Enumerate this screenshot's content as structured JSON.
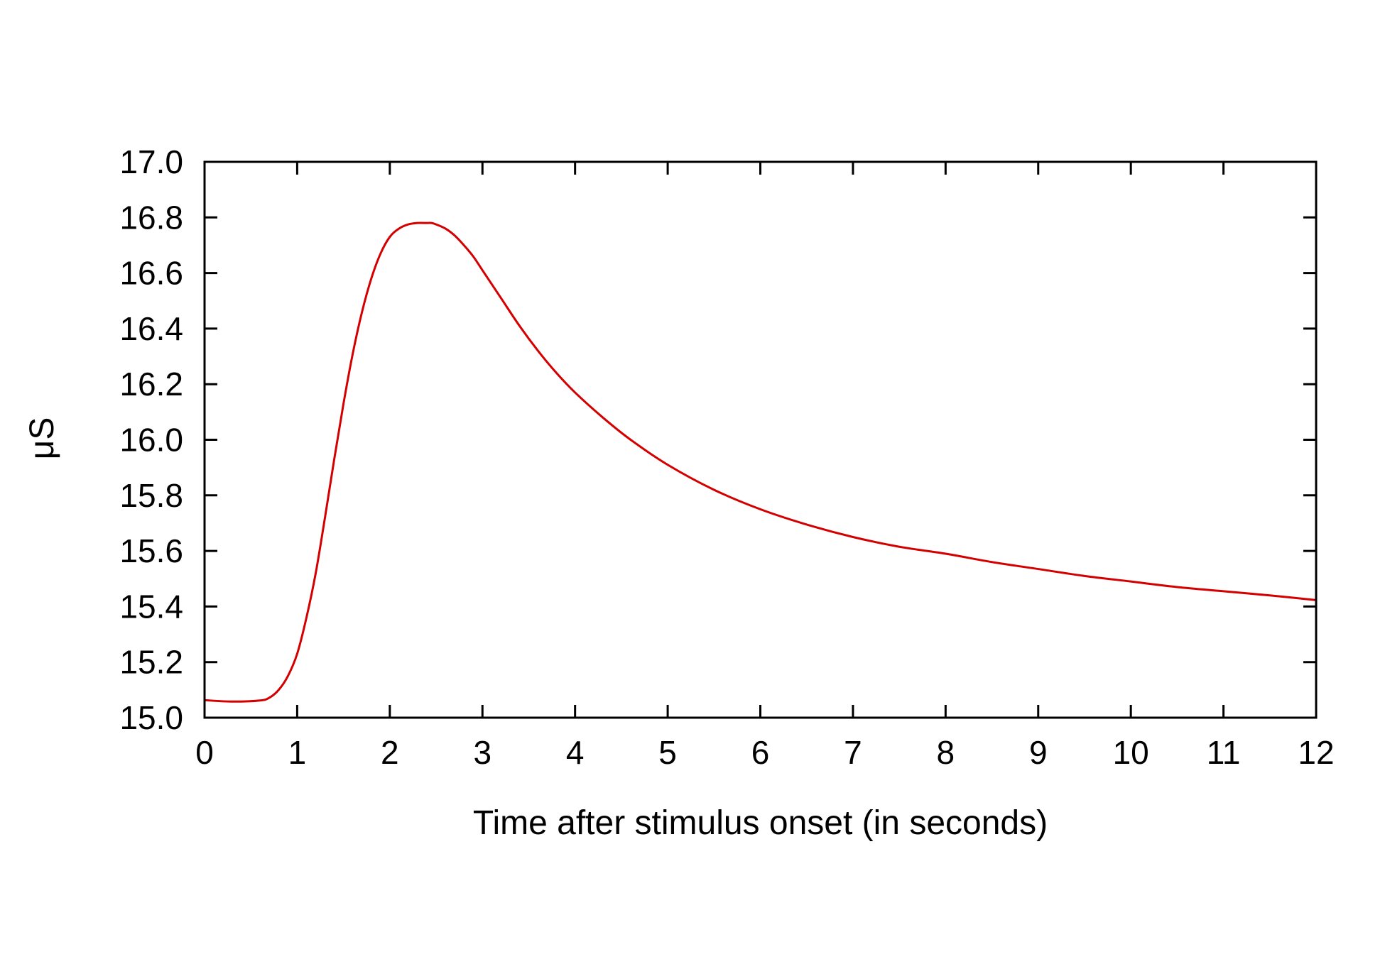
{
  "chart_data": {
    "type": "line",
    "title": "",
    "xlabel": "Time after stimulus onset (in seconds)",
    "ylabel": "μS",
    "xlim": [
      0,
      12
    ],
    "ylim": [
      15.0,
      17.0
    ],
    "x_ticks": [
      "0",
      "1",
      "2",
      "3",
      "4",
      "5",
      "6",
      "7",
      "8",
      "9",
      "10",
      "11",
      "12"
    ],
    "y_ticks": [
      "15.0",
      "15.2",
      "15.4",
      "15.6",
      "15.8",
      "16.0",
      "16.2",
      "16.4",
      "16.6",
      "16.8",
      "17.0"
    ],
    "grid": false,
    "legend": "none",
    "series": [
      {
        "color": "#d40000",
        "x": [
          0,
          0.3,
          0.6,
          0.7,
          0.8,
          0.9,
          1.0,
          1.1,
          1.2,
          1.3,
          1.4,
          1.5,
          1.6,
          1.7,
          1.8,
          1.9,
          2.0,
          2.1,
          2.2,
          2.3,
          2.4,
          2.45,
          2.5,
          2.6,
          2.7,
          2.8,
          2.9,
          3.0,
          3.2,
          3.4,
          3.6,
          3.8,
          4.0,
          4.3,
          4.6,
          5.0,
          5.5,
          6.0,
          6.5,
          7.0,
          7.5,
          8.0,
          8.5,
          9.0,
          9.5,
          10.0,
          10.5,
          11.0,
          11.5,
          12.0
        ],
        "y": [
          15.063,
          15.058,
          15.062,
          15.072,
          15.1,
          15.15,
          15.23,
          15.36,
          15.52,
          15.72,
          15.93,
          16.13,
          16.31,
          16.46,
          16.58,
          16.67,
          16.73,
          16.76,
          16.775,
          16.78,
          16.78,
          16.78,
          16.775,
          16.76,
          16.735,
          16.7,
          16.66,
          16.61,
          16.51,
          16.41,
          16.32,
          16.24,
          16.17,
          16.08,
          16.0,
          15.91,
          15.82,
          15.75,
          15.695,
          15.65,
          15.615,
          15.59,
          15.56,
          15.535,
          15.51,
          15.49,
          15.47,
          15.455,
          15.44,
          15.423
        ]
      }
    ]
  }
}
